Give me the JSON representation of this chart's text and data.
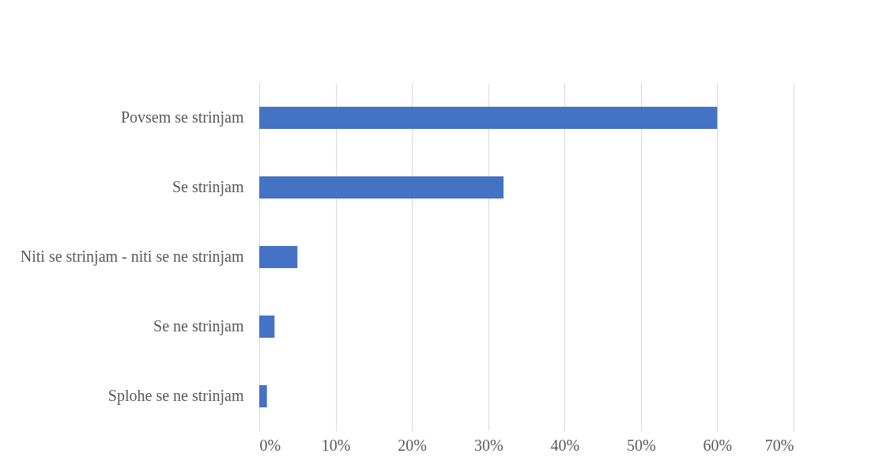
{
  "chart_data": {
    "type": "bar",
    "orientation": "horizontal",
    "categories": [
      "Povsem se strinjam",
      "Se strinjam",
      "Niti se strinjam -  niti se ne strinjam",
      "Se ne strinjam",
      "Splohe se ne strinjam"
    ],
    "values": [
      60,
      32,
      5,
      2,
      1
    ],
    "color": "#4472c4",
    "xlim": [
      0,
      70
    ],
    "xticks": [
      {
        "value": 0,
        "label": "0%"
      },
      {
        "value": 10,
        "label": "10%"
      },
      {
        "value": 20,
        "label": "20%"
      },
      {
        "value": 30,
        "label": "30%"
      },
      {
        "value": 40,
        "label": "40%"
      },
      {
        "value": 50,
        "label": "50%"
      },
      {
        "value": 60,
        "label": "60%"
      },
      {
        "value": 70,
        "label": "70%"
      }
    ],
    "grid": "x"
  }
}
